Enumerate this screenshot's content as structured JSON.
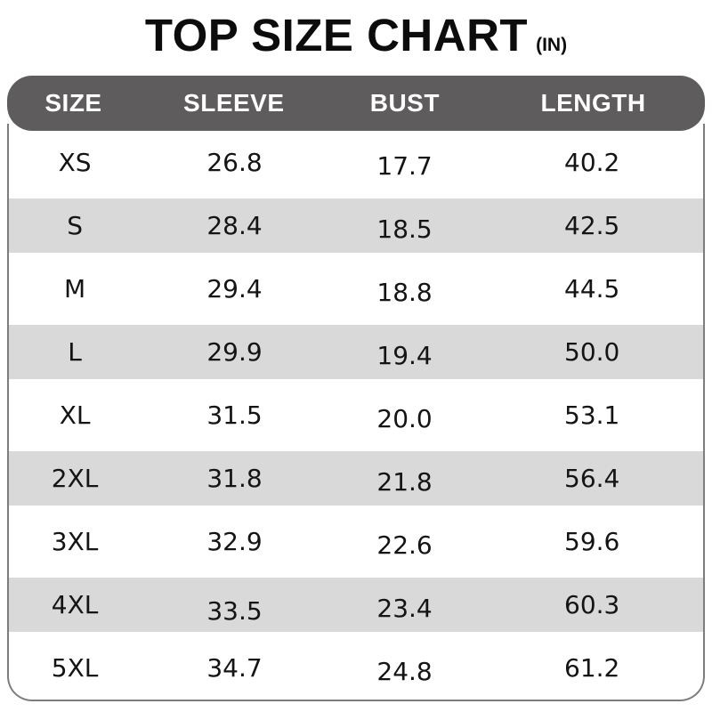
{
  "title": {
    "main": "TOP SIZE CHART",
    "unit": "(IN)"
  },
  "table": {
    "headers": {
      "size": "SIZE",
      "sleeve": "SLEEVE",
      "bust": "BUST",
      "length": "LENGTH"
    },
    "rows": [
      {
        "size": "XS",
        "sleeve": "26.8",
        "bust": "17.7",
        "length": "40.2"
      },
      {
        "size": "S",
        "sleeve": "28.4",
        "bust": "18.5",
        "length": "42.5"
      },
      {
        "size": "M",
        "sleeve": "29.4",
        "bust": "18.8",
        "length": "44.5"
      },
      {
        "size": "L",
        "sleeve": "29.9",
        "bust": "19.4",
        "length": "50.0"
      },
      {
        "size": "XL",
        "sleeve": "31.5",
        "bust": "20.0",
        "length": "53.1"
      },
      {
        "size": "2XL",
        "sleeve": "31.8",
        "bust": "21.8",
        "length": "56.4"
      },
      {
        "size": "3XL",
        "sleeve": "32.9",
        "bust": "22.6",
        "length": "59.6"
      },
      {
        "size": "4XL",
        "sleeve": "33.5",
        "bust": "23.4",
        "length": "60.3"
      },
      {
        "size": "5XL",
        "sleeve": "34.7",
        "bust": "24.8",
        "length": "61.2"
      }
    ]
  },
  "colors": {
    "header_bg": "#5e5c5c",
    "header_text": "#ffffff",
    "row_alt_bg": "#d9d9d9",
    "body_border": "#7d7d7d",
    "text": "#141414"
  },
  "chart_data": {
    "type": "table",
    "title": "TOP SIZE CHART",
    "unit": "(IN)",
    "columns": [
      "SIZE",
      "SLEEVE",
      "BUST",
      "LENGTH"
    ],
    "rows": [
      [
        "XS",
        26.8,
        17.7,
        40.2
      ],
      [
        "S",
        28.4,
        18.5,
        42.5
      ],
      [
        "M",
        29.4,
        18.8,
        44.5
      ],
      [
        "L",
        29.9,
        19.4,
        50.0
      ],
      [
        "XL",
        31.5,
        20.0,
        53.1
      ],
      [
        "2XL",
        31.8,
        21.8,
        56.4
      ],
      [
        "3XL",
        32.9,
        22.6,
        59.6
      ],
      [
        "4XL",
        33.5,
        23.4,
        60.3
      ],
      [
        "5XL",
        34.7,
        24.8,
        61.2
      ]
    ]
  }
}
